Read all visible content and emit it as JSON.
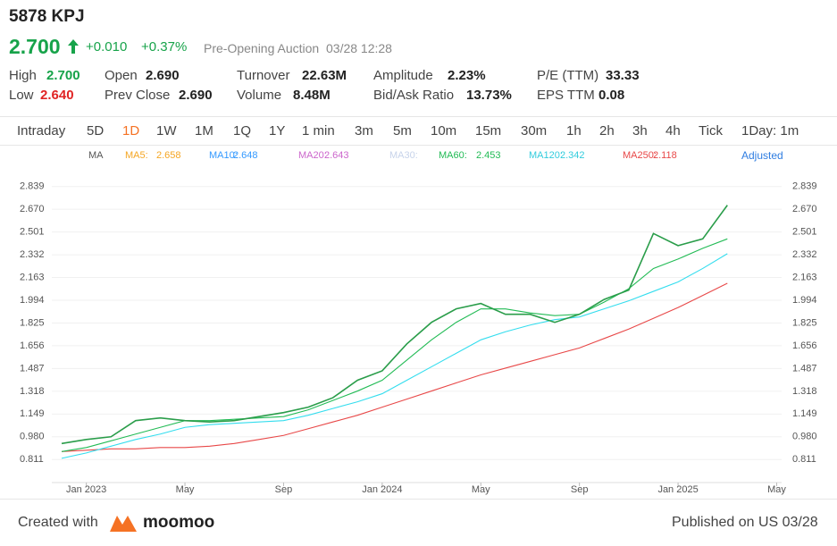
{
  "header": {
    "symbol": "5878 KPJ",
    "price": "2.700",
    "change": "+0.010",
    "change_pct": "+0.37%",
    "session": "Pre-Opening Auction",
    "time": "03/28 12:28"
  },
  "stats": [
    [
      {
        "label": "High",
        "value": "2.700"
      },
      {
        "label": "Open",
        "value": "2.690"
      },
      {
        "label": "Turnover",
        "value": "22.63M"
      },
      {
        "label": "Amplitude",
        "value": "2.23%"
      },
      {
        "label": "P/E (TTM)",
        "value": "33.33"
      }
    ],
    [
      {
        "label": "Low",
        "value": "2.640"
      },
      {
        "label": "Prev Close",
        "value": "2.690"
      },
      {
        "label": "Volume",
        "value": "8.48M"
      },
      {
        "label": "Bid/Ask Ratio",
        "value": "13.73%"
      },
      {
        "label": "EPS TTM",
        "value": "0.08"
      }
    ]
  ],
  "tabs": [
    "Intraday",
    "5D",
    "1D",
    "1W",
    "1M",
    "1Q",
    "1Y",
    "1 min",
    "3m",
    "5m",
    "10m",
    "15m",
    "30m",
    "1h",
    "2h",
    "3h",
    "4h",
    "Tick",
    "1Day: 1m"
  ],
  "active_tab": "1D",
  "ma_legend": {
    "title": "MA",
    "items": [
      {
        "label": "MA5:",
        "value": "2.658",
        "color": "#f5a623"
      },
      {
        "label": "MA10:",
        "value": "2.648",
        "color": "#3399ff"
      },
      {
        "label": "MA20:",
        "value": "2.643",
        "color": "#cc66cc"
      },
      {
        "label": "MA30:",
        "value": null,
        "color": "#c7d3ea"
      },
      {
        "label": "MA60:",
        "value": "2.453",
        "color": "#22bb55"
      },
      {
        "label": "MA120:",
        "value": "2.342",
        "color": "#33ccdd"
      },
      {
        "label": "MA250:",
        "value": "2.118",
        "color": "#e84848"
      }
    ],
    "adjusted": "Adjusted"
  },
  "chart_data": {
    "type": "line",
    "x": [
      -1,
      0,
      1,
      2,
      3,
      4,
      5,
      6,
      7,
      8,
      9,
      10,
      11,
      12,
      13,
      14,
      15,
      16,
      17,
      18,
      19,
      20,
      21,
      22,
      23,
      24,
      25,
      26
    ],
    "series": [
      {
        "color": "#2a9d4a",
        "values": [
          0.93,
          0.96,
          0.98,
          1.1,
          1.12,
          1.1,
          1.09,
          1.1,
          1.13,
          1.16,
          1.2,
          1.27,
          1.4,
          1.47,
          1.67,
          1.83,
          1.93,
          1.97,
          1.89,
          1.89,
          1.83,
          1.89,
          2.0,
          2.07,
          2.49,
          2.4,
          2.45,
          2.7
        ]
      },
      {
        "color": "#22bb55",
        "values": [
          0.87,
          0.9,
          0.95,
          1.0,
          1.05,
          1.1,
          1.1,
          1.11,
          1.12,
          1.13,
          1.18,
          1.25,
          1.32,
          1.4,
          1.55,
          1.7,
          1.83,
          1.93,
          1.93,
          1.9,
          1.88,
          1.89,
          1.98,
          2.08,
          2.23,
          2.3,
          2.38,
          2.45
        ]
      },
      {
        "color": "#33ddee",
        "values": [
          0.82,
          0.86,
          0.91,
          0.96,
          1.0,
          1.05,
          1.07,
          1.08,
          1.09,
          1.1,
          1.14,
          1.19,
          1.24,
          1.3,
          1.4,
          1.5,
          1.6,
          1.7,
          1.76,
          1.81,
          1.85,
          1.87,
          1.93,
          1.99,
          2.06,
          2.13,
          2.23,
          2.34
        ]
      },
      {
        "color": "#e84848",
        "values": [
          0.87,
          0.88,
          0.89,
          0.89,
          0.9,
          0.9,
          0.91,
          0.93,
          0.96,
          0.99,
          1.04,
          1.09,
          1.14,
          1.2,
          1.26,
          1.32,
          1.38,
          1.44,
          1.49,
          1.54,
          1.59,
          1.64,
          1.71,
          1.78,
          1.86,
          1.94,
          2.03,
          2.12
        ]
      }
    ],
    "xlim": [
      -1.4,
      28.2
    ],
    "xticks": [
      {
        "value": 0,
        "label": "Jan 2023"
      },
      {
        "value": 4,
        "label": "May"
      },
      {
        "value": 8,
        "label": "Sep"
      },
      {
        "value": 12,
        "label": "Jan 2024"
      },
      {
        "value": 16,
        "label": "May"
      },
      {
        "value": 20,
        "label": "Sep"
      },
      {
        "value": 24,
        "label": "Jan 2025"
      },
      {
        "value": 28,
        "label": "May"
      }
    ],
    "ylim": [
      0.64,
      2.93
    ],
    "yticks": [
      0.811,
      {
        "value": 0.98,
        "label": "0.980"
      },
      1.149,
      1.318,
      1.487,
      1.656,
      1.825,
      1.994,
      2.163,
      2.332,
      2.501,
      {
        "value": 2.67,
        "label": "2.670"
      },
      2.839
    ],
    "grid": true
  },
  "footer": {
    "created": "Created with",
    "brand": "moomoo",
    "published": "Published on US 03/28"
  }
}
